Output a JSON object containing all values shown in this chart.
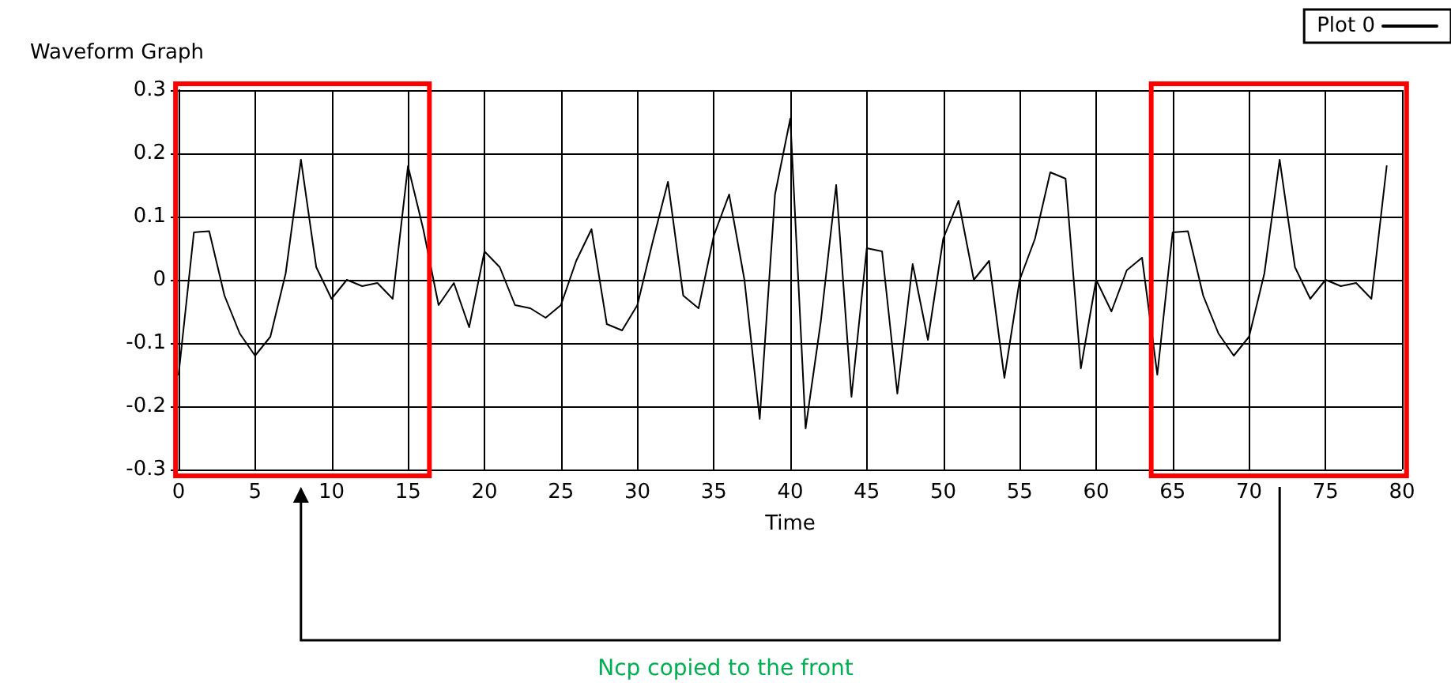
{
  "chart_data": {
    "type": "line",
    "title": "Waveform Graph",
    "xlabel": "Time",
    "annotations": [
      "Ncp copied to the front"
    ],
    "x": [
      0,
      1,
      2,
      3,
      4,
      5,
      6,
      7,
      8,
      9,
      10,
      11,
      12,
      13,
      14,
      15,
      16,
      17,
      18,
      19,
      20,
      21,
      22,
      23,
      24,
      25,
      26,
      27,
      28,
      29,
      30,
      31,
      32,
      33,
      34,
      35,
      36,
      37,
      38,
      39,
      40,
      41,
      42,
      43,
      44,
      45,
      46,
      47,
      48,
      49,
      50,
      51,
      52,
      53,
      54,
      55,
      56,
      57,
      58,
      59,
      60,
      61,
      62,
      63,
      64,
      65,
      66,
      67,
      68,
      69,
      70,
      71,
      72,
      73,
      74,
      75,
      76,
      77,
      78,
      79
    ],
    "series": [
      {
        "name": "Plot 0",
        "color": "#000000",
        "values": [
          -0.15,
          0.075,
          0.077,
          -0.025,
          -0.085,
          -0.12,
          -0.09,
          0.01,
          0.19,
          0.02,
          -0.03,
          0.0,
          -0.01,
          -0.005,
          -0.03,
          0.18,
          0.08,
          -0.04,
          -0.005,
          -0.075,
          0.045,
          0.02,
          -0.04,
          -0.045,
          -0.06,
          -0.04,
          0.03,
          0.08,
          -0.07,
          -0.08,
          -0.04,
          0.06,
          0.155,
          -0.025,
          -0.045,
          0.07,
          0.135,
          0.0,
          -0.22,
          0.135,
          0.255,
          -0.235,
          -0.065,
          0.15,
          -0.185,
          0.05,
          0.045,
          -0.18,
          0.025,
          -0.095,
          0.065,
          0.125,
          0.0,
          0.03,
          -0.155,
          0.0,
          0.065,
          0.17,
          0.16,
          -0.14,
          0.0,
          -0.05,
          0.015,
          0.035,
          -0.15,
          0.075,
          0.077,
          -0.025,
          -0.085,
          -0.12,
          -0.09,
          0.01,
          0.19,
          0.02,
          -0.03,
          0.0,
          -0.01,
          -0.005,
          -0.03,
          0.18
        ]
      }
    ],
    "xlim": [
      0,
      80
    ],
    "xticks": [
      0,
      5,
      10,
      15,
      20,
      25,
      30,
      35,
      40,
      45,
      50,
      55,
      60,
      65,
      70,
      75,
      80
    ],
    "ylim": [
      -0.3,
      0.3
    ],
    "yticks": [
      -0.3,
      -0.2,
      -0.1,
      0,
      0.1,
      0.2,
      0.3
    ],
    "grid": true,
    "legend": "top right",
    "marker": "none",
    "line_style": "solid"
  }
}
